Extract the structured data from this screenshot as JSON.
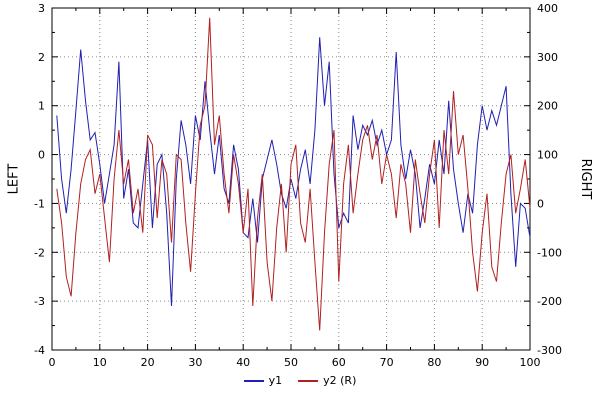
{
  "chart_data": {
    "type": "line",
    "title": "",
    "grid": true,
    "legend_position": "bottom-center",
    "x_axis": {
      "range": [
        0,
        100
      ],
      "ticks": [
        0,
        10,
        20,
        30,
        40,
        50,
        60,
        70,
        80,
        90,
        100
      ],
      "minor_step": 5
    },
    "left_axis": {
      "label": "LEFT",
      "range": [
        -4,
        3
      ],
      "ticks": [
        3,
        2,
        1,
        0,
        -1,
        -2,
        -3,
        -4
      ],
      "minor_step": 0.5
    },
    "right_axis": {
      "label": "RIGHT",
      "range": [
        -300,
        400
      ],
      "ticks": [
        400,
        300,
        200,
        100,
        0,
        -100,
        -200,
        -300
      ],
      "minor_step": 50
    },
    "series": [
      {
        "name": "y1",
        "axis": "left",
        "color": "#2020b2",
        "x_start": 1,
        "x_step": 1,
        "values": [
          0.8,
          -0.5,
          -1.2,
          -0.3,
          0.9,
          2.15,
          1.1,
          0.3,
          0.45,
          -0.2,
          -1.0,
          -0.4,
          0.2,
          1.9,
          -0.9,
          -0.3,
          -1.4,
          -1.5,
          -0.6,
          0.3,
          -1.5,
          -0.2,
          0.0,
          -1.2,
          -3.1,
          -0.5,
          0.7,
          0.2,
          -0.6,
          0.8,
          0.3,
          1.5,
          0.5,
          -0.4,
          0.4,
          -0.7,
          -1.0,
          0.2,
          -0.3,
          -1.6,
          -1.7,
          -0.9,
          -1.8,
          -0.5,
          -0.1,
          0.3,
          -0.2,
          -0.8,
          -1.1,
          -0.5,
          -0.9,
          -0.3,
          0.1,
          -0.6,
          0.5,
          2.4,
          1.0,
          1.9,
          -0.4,
          -1.5,
          -1.2,
          -1.4,
          0.8,
          0.1,
          0.6,
          0.4,
          0.7,
          0.2,
          0.5,
          0.0,
          0.3,
          2.1,
          0.2,
          -0.5,
          0.1,
          -0.4,
          -1.5,
          -0.9,
          -0.2,
          -0.6,
          0.3,
          -0.4,
          1.1,
          -0.3,
          -1.0,
          -1.6,
          -0.8,
          -1.2,
          0.2,
          1.0,
          0.5,
          0.9,
          0.6,
          1.0,
          1.4,
          -0.8,
          -2.3,
          -1.0,
          -1.1,
          -1.7
        ]
      },
      {
        "name": "y2 (R)",
        "axis": "right",
        "color": "#b22020",
        "x_start": 1,
        "x_step": 1,
        "values": [
          30,
          -40,
          -150,
          -190,
          -60,
          40,
          90,
          110,
          20,
          60,
          -30,
          -120,
          50,
          150,
          40,
          90,
          -20,
          30,
          -60,
          140,
          120,
          -30,
          90,
          60,
          -80,
          100,
          90,
          -40,
          -140,
          20,
          160,
          200,
          380,
          120,
          180,
          60,
          -20,
          100,
          40,
          -60,
          30,
          -210,
          -30,
          60,
          -120,
          -200,
          -50,
          40,
          -100,
          80,
          120,
          -40,
          -80,
          30,
          -120,
          -260,
          -60,
          80,
          150,
          -160,
          40,
          120,
          -20,
          60,
          130,
          160,
          90,
          140,
          40,
          100,
          60,
          -30,
          80,
          40,
          -60,
          90,
          20,
          -40,
          60,
          130,
          -50,
          150,
          60,
          230,
          100,
          140,
          30,
          -100,
          -180,
          -60,
          20,
          -130,
          -160,
          -40,
          60,
          100,
          -20,
          30,
          90,
          -10
        ]
      }
    ]
  },
  "legend": {
    "items": [
      {
        "label": "y1"
      },
      {
        "label": "y2 (R)"
      }
    ]
  }
}
